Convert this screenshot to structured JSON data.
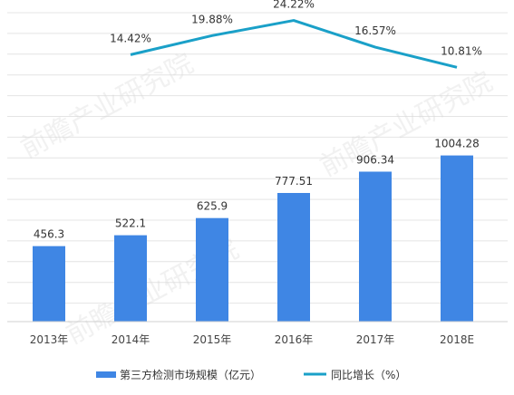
{
  "chart_data": {
    "type": "bar",
    "categories": [
      "2013年",
      "2014年",
      "2015年",
      "2016年",
      "2017年",
      "2018E"
    ],
    "series": [
      {
        "name": "第三方检测市场规模（亿元）",
        "type": "bar",
        "axis": "left",
        "values": [
          456.3,
          522.1,
          625.9,
          777.51,
          906.34,
          1004.28
        ],
        "labels": [
          "456.3",
          "522.1",
          "625.9",
          "777.51",
          "906.34",
          "1004.28"
        ]
      },
      {
        "name": "同比增长（%）",
        "type": "line",
        "axis": "right",
        "values": [
          null,
          14.42,
          19.88,
          24.22,
          16.57,
          10.81
        ],
        "labels": [
          "",
          "14.42%",
          "19.88%",
          "24.22%",
          "16.57%",
          "10.81%"
        ]
      }
    ],
    "bar_ylim": [
      0,
      1900
    ],
    "line_ylim": [
      -62,
      28
    ],
    "grid": true,
    "legend_position": "bottom",
    "colors": {
      "bar": "#3f86e4",
      "line": "#1aa0c8",
      "grid": "#e4e4e4"
    }
  },
  "watermark": "前瞻产业研究院"
}
